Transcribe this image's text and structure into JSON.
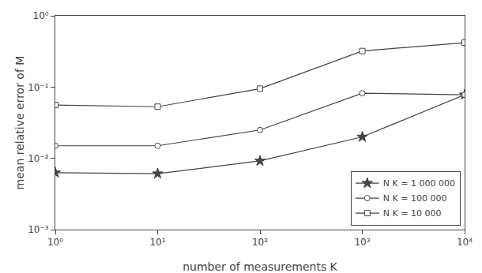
{
  "chart_data": {
    "type": "line",
    "xlabel": "number of measurements K",
    "ylabel": "mean relative error of M",
    "x": [
      1,
      10,
      100,
      1000,
      10000
    ],
    "series": [
      {
        "name": "N K = 1 000 000",
        "color": "#444444",
        "marker": "star",
        "values": [
          0.0063,
          0.0061,
          0.0092,
          0.02,
          0.078
        ]
      },
      {
        "name": "N K = 100 000",
        "color": "#444444",
        "marker": "circle",
        "values": [
          0.015,
          0.015,
          0.025,
          0.082,
          0.078
        ]
      },
      {
        "name": "N K = 10 000",
        "color": "#444444",
        "marker": "square",
        "values": [
          0.056,
          0.053,
          0.095,
          0.32,
          0.42
        ]
      }
    ],
    "log": true,
    "xlim": [
      1,
      10000
    ],
    "ylim": [
      0.001,
      1.0
    ],
    "xticks": [
      {
        "value": 1,
        "label": "10⁰"
      },
      {
        "value": 10,
        "label": "10¹"
      },
      {
        "value": 100,
        "label": "10²"
      },
      {
        "value": 1000,
        "label": "10³"
      },
      {
        "value": 10000,
        "label": "10⁴"
      }
    ],
    "yticks": [
      {
        "value": 0.001,
        "label": "10⁻³"
      },
      {
        "value": 0.01,
        "label": "10⁻²"
      },
      {
        "value": 0.1,
        "label": "10⁻¹"
      },
      {
        "value": 1,
        "label": "10⁰"
      }
    ],
    "grid": false,
    "legend": "lower right"
  }
}
